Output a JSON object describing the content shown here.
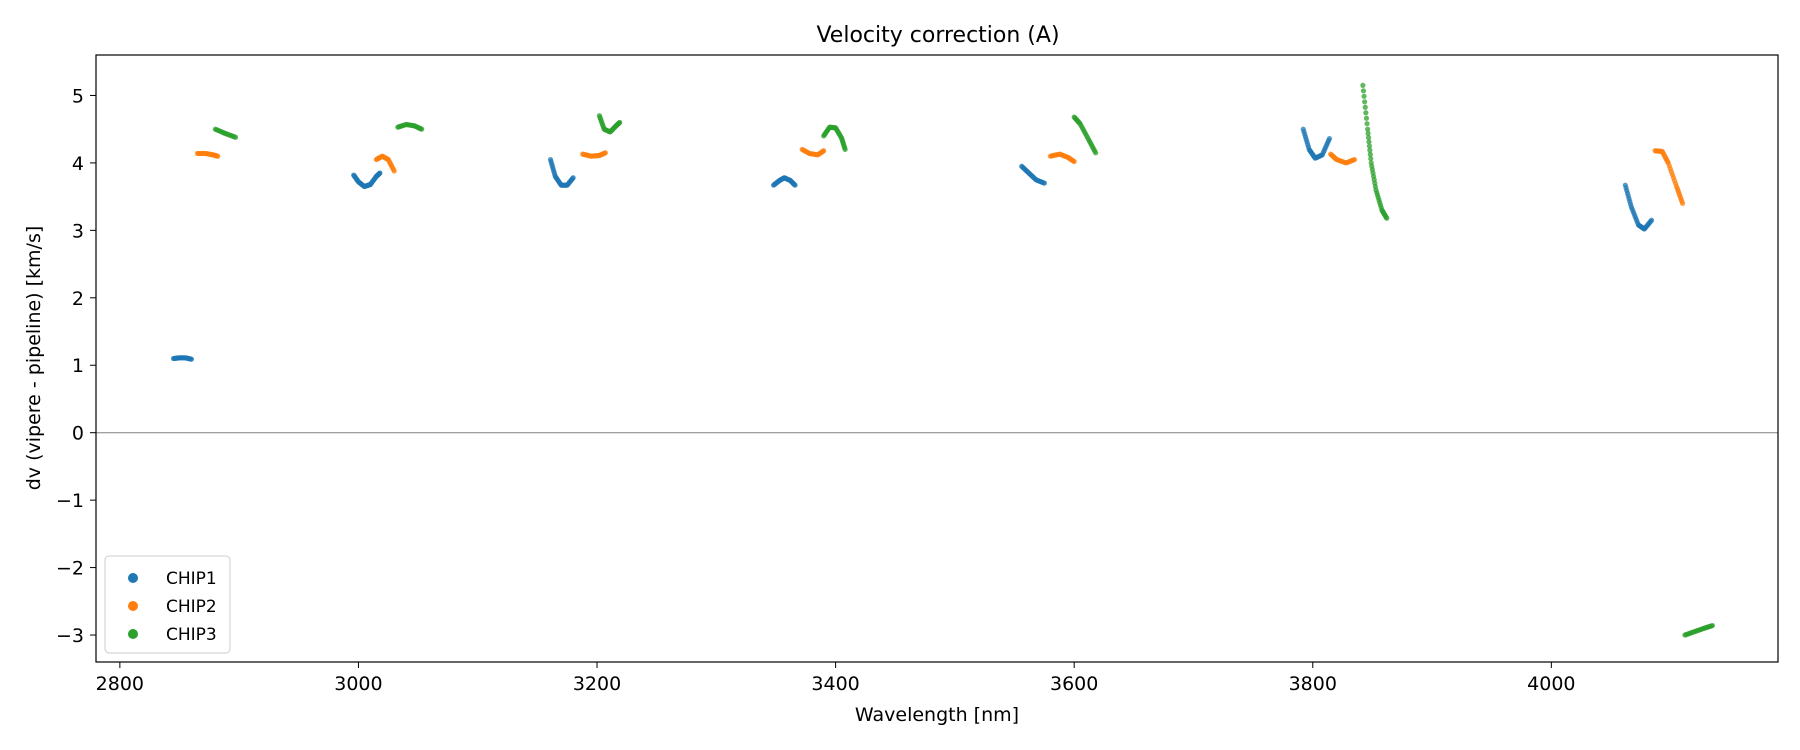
{
  "chart_data": {
    "type": "scatter",
    "title": "Velocity correction (A)",
    "xlabel": "Wavelength [nm]",
    "ylabel": "dv (vipere - pipeline) [km/s]",
    "xlim": [
      2780,
      4190
    ],
    "ylim": [
      -3.4,
      5.6
    ],
    "xticks": [
      2800,
      3000,
      3200,
      3400,
      3600,
      3800,
      4000
    ],
    "yticks": [
      5,
      4,
      3,
      2,
      1,
      0,
      -1,
      -2,
      -3
    ],
    "xtick_labels": [
      "2800",
      "3000",
      "3200",
      "3400",
      "3600",
      "3800",
      "4000"
    ],
    "ytick_labels": [
      "5",
      "4",
      "3",
      "2",
      "1",
      "0",
      "−1",
      "−2",
      "−3"
    ],
    "hline": 0,
    "grid": false,
    "legend_position": "lower-left",
    "series": [
      {
        "name": "CHIP1",
        "color": "#1f77b4",
        "segments": [
          [
            [
              2845,
              1.1
            ],
            [
              2850,
              1.11
            ],
            [
              2855,
              1.11
            ],
            [
              2860,
              1.09
            ]
          ],
          [
            [
              2996,
              3.82
            ],
            [
              3000,
              3.72
            ],
            [
              3005,
              3.65
            ],
            [
              3010,
              3.68
            ],
            [
              3015,
              3.8
            ],
            [
              3018,
              3.85
            ]
          ],
          [
            [
              3161,
              4.05
            ],
            [
              3165,
              3.8
            ],
            [
              3170,
              3.67
            ],
            [
              3175,
              3.67
            ],
            [
              3180,
              3.78
            ]
          ],
          [
            [
              3348,
              3.67
            ],
            [
              3353,
              3.74
            ],
            [
              3357,
              3.78
            ],
            [
              3362,
              3.74
            ],
            [
              3366,
              3.67
            ]
          ],
          [
            [
              3556,
              3.95
            ],
            [
              3562,
              3.85
            ],
            [
              3568,
              3.75
            ],
            [
              3575,
              3.7
            ]
          ],
          [
            [
              3792,
              4.5
            ],
            [
              3797,
              4.2
            ],
            [
              3802,
              4.07
            ],
            [
              3808,
              4.12
            ],
            [
              3814,
              4.36
            ]
          ],
          [
            [
              4062,
              3.67
            ],
            [
              4067,
              3.35
            ],
            [
              4073,
              3.08
            ],
            [
              4078,
              3.02
            ],
            [
              4084,
              3.15
            ]
          ]
        ]
      },
      {
        "name": "CHIP2",
        "color": "#ff7f0e",
        "segments": [
          [
            [
              2865,
              4.14
            ],
            [
              2872,
              4.14
            ],
            [
              2878,
              4.12
            ],
            [
              2882,
              4.1
            ]
          ],
          [
            [
              3015,
              4.05
            ],
            [
              3020,
              4.1
            ],
            [
              3025,
              4.05
            ],
            [
              3030,
              3.88
            ]
          ],
          [
            [
              3188,
              4.13
            ],
            [
              3195,
              4.1
            ],
            [
              3202,
              4.11
            ],
            [
              3207,
              4.15
            ]
          ],
          [
            [
              3372,
              4.2
            ],
            [
              3378,
              4.14
            ],
            [
              3385,
              4.12
            ],
            [
              3390,
              4.18
            ]
          ],
          [
            [
              3580,
              4.1
            ],
            [
              3588,
              4.13
            ],
            [
              3595,
              4.08
            ],
            [
              3600,
              4.02
            ]
          ],
          [
            [
              3815,
              4.13
            ],
            [
              3820,
              4.05
            ],
            [
              3828,
              4.0
            ],
            [
              3835,
              4.05
            ]
          ],
          [
            [
              4087,
              4.18
            ],
            [
              4093,
              4.17
            ],
            [
              4098,
              4.0
            ],
            [
              4105,
              3.65
            ],
            [
              4110,
              3.4
            ]
          ]
        ]
      },
      {
        "name": "CHIP3",
        "color": "#2ca02c",
        "segments": [
          [
            [
              2880,
              4.5
            ],
            [
              2888,
              4.44
            ],
            [
              2897,
              4.38
            ]
          ],
          [
            [
              3033,
              4.53
            ],
            [
              3040,
              4.57
            ],
            [
              3047,
              4.55
            ],
            [
              3053,
              4.5
            ]
          ],
          [
            [
              3202,
              4.7
            ],
            [
              3206,
              4.5
            ],
            [
              3211,
              4.46
            ],
            [
              3216,
              4.55
            ],
            [
              3219,
              4.6
            ]
          ],
          [
            [
              3390,
              4.4
            ],
            [
              3395,
              4.53
            ],
            [
              3400,
              4.52
            ],
            [
              3405,
              4.37
            ],
            [
              3408,
              4.2
            ]
          ],
          [
            [
              3600,
              4.68
            ],
            [
              3605,
              4.58
            ],
            [
              3612,
              4.35
            ],
            [
              3618,
              4.15
            ]
          ],
          [
            [
              3842,
              5.15
            ],
            [
              3846,
              4.5
            ],
            [
              3849,
              4.0
            ],
            [
              3853,
              3.6
            ],
            [
              3858,
              3.3
            ],
            [
              3862,
              3.18
            ]
          ],
          [
            [
              4112,
              -3.0
            ],
            [
              4120,
              -2.95
            ],
            [
              4128,
              -2.9
            ],
            [
              4135,
              -2.86
            ]
          ]
        ]
      }
    ]
  }
}
